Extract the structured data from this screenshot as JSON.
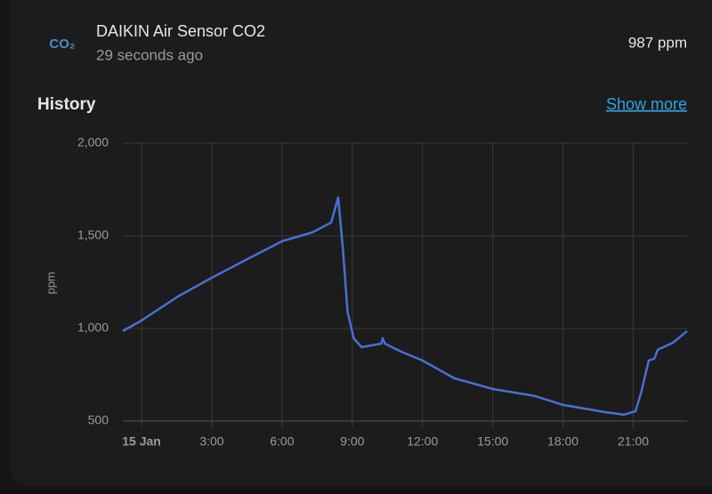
{
  "header": {
    "icon": "CO₂",
    "title": "DAIKIN Air Sensor CO2",
    "subtitle": "29 seconds ago",
    "state": "987 ppm"
  },
  "history": {
    "title": "History",
    "link": "Show more"
  },
  "chart_data": {
    "type": "line",
    "ylabel": "ppm",
    "color": "#4670d4",
    "grid": true,
    "x": [
      -0.8,
      0,
      1.56,
      3,
      4.6,
      6,
      7.3,
      8.1,
      8.4,
      8.6,
      8.8,
      9.06,
      9.4,
      10.24,
      10.3,
      10.4,
      11.08,
      12,
      13.36,
      15,
      16.8,
      18,
      19.8,
      20.6,
      21.1,
      21.35,
      21.66,
      21.9,
      22.05,
      22.7,
      23.3
    ],
    "values": [
      986,
      1043,
      1173,
      1274,
      1380,
      1471,
      1519,
      1572,
      1707,
      1428,
      1091,
      947,
      899,
      918,
      947,
      918,
      875,
      827,
      731,
      673,
      635,
      587,
      548,
      534,
      553,
      659,
      827,
      837,
      885,
      923,
      986
    ],
    "xlim": [
      -0.8,
      23.3
    ],
    "xticks": [
      {
        "value": 0,
        "label": "15 Jan"
      },
      {
        "value": 3,
        "label": "3:00"
      },
      {
        "value": 6,
        "label": "6:00"
      },
      {
        "value": 9,
        "label": "9:00"
      },
      {
        "value": 12,
        "label": "12:00"
      },
      {
        "value": 15,
        "label": "15:00"
      },
      {
        "value": 18,
        "label": "18:00"
      },
      {
        "value": 21,
        "label": "21:00"
      }
    ],
    "ylim": [
      500,
      2000
    ],
    "yticks": [
      500,
      {
        "value": 1000,
        "label": "1,000"
      },
      {
        "value": 1500,
        "label": "1,500"
      },
      {
        "value": 2000,
        "label": "2,000"
      }
    ]
  }
}
